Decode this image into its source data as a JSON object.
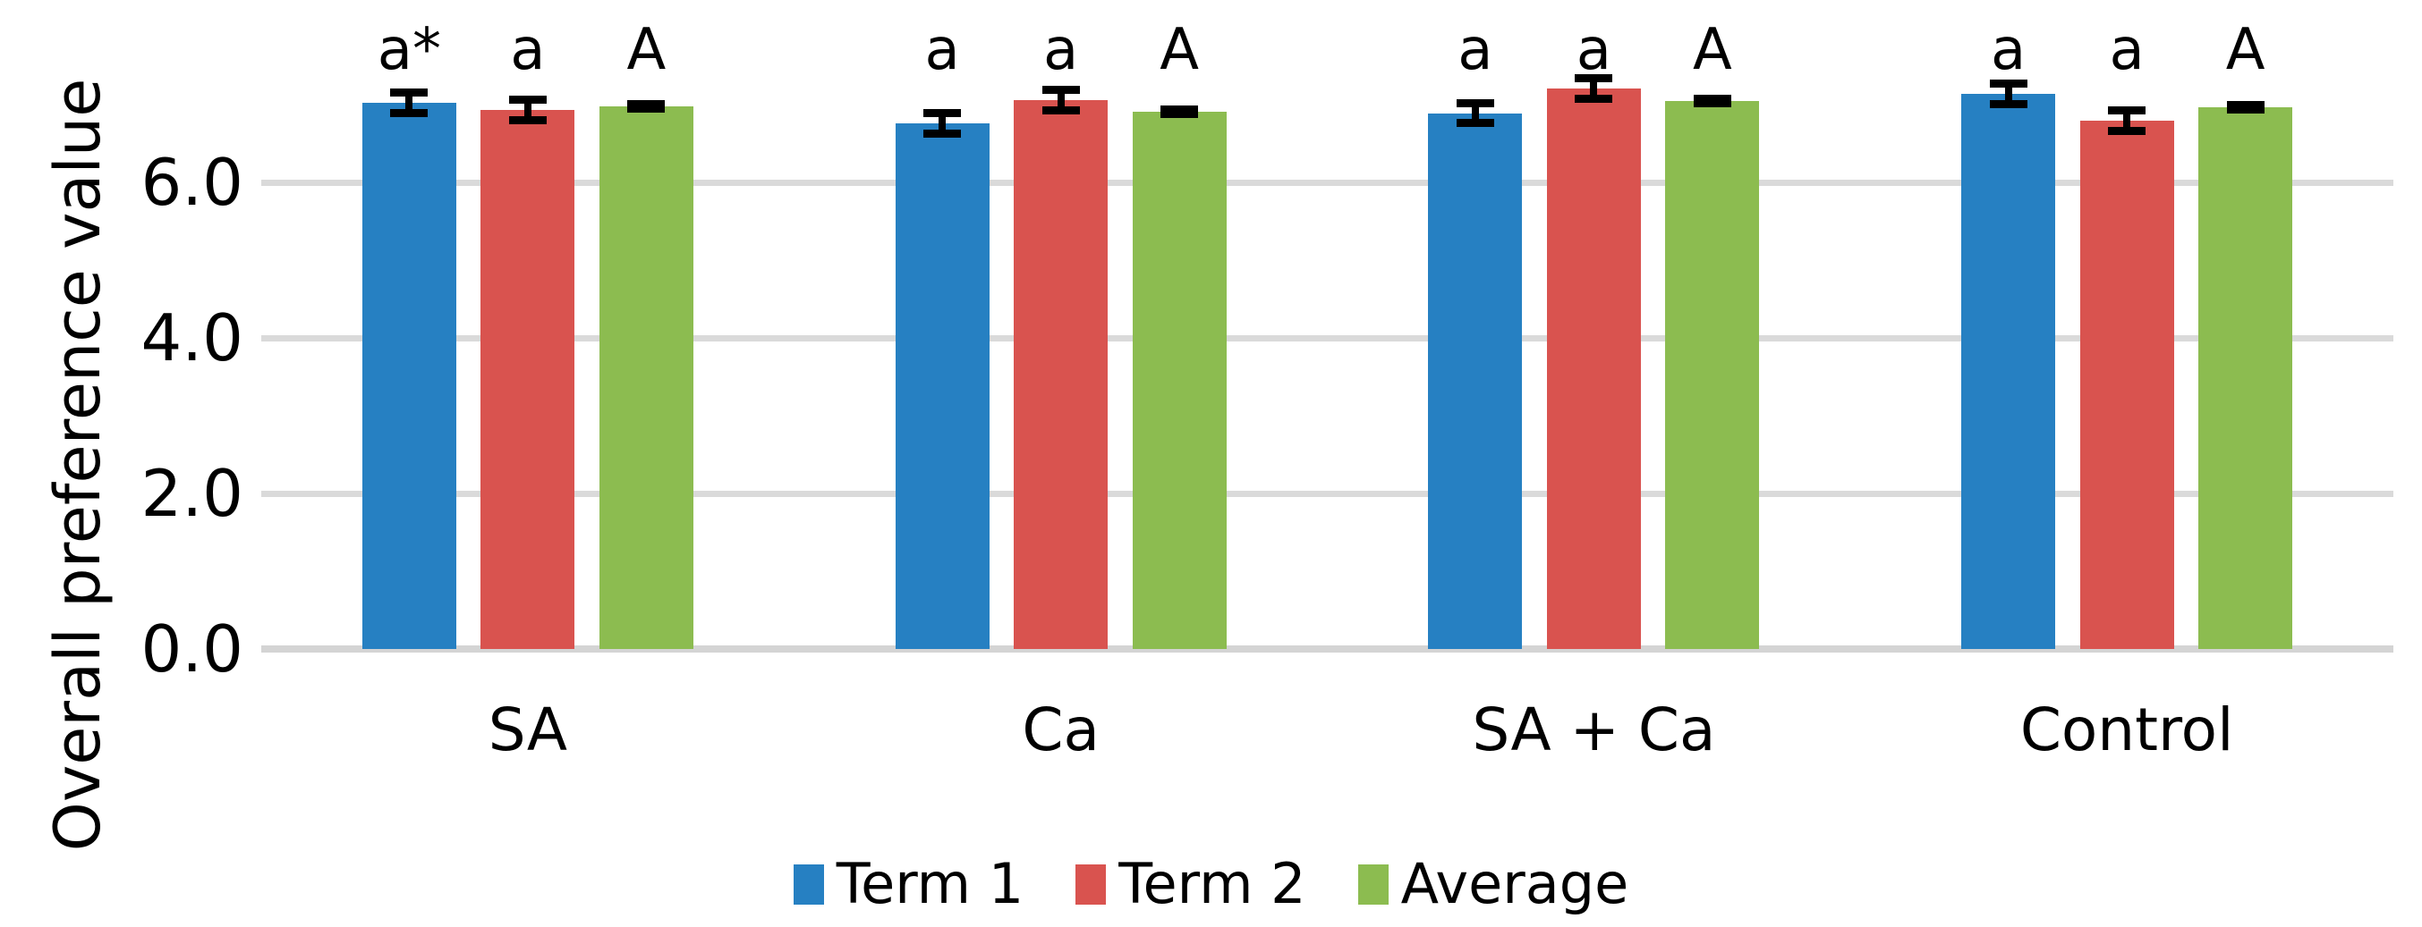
{
  "chart_data": {
    "type": "bar",
    "title": "",
    "ylabel": "Overall preference value",
    "xlabel": "",
    "categories": [
      "SA",
      "Ca",
      "SA + Ca",
      "Control"
    ],
    "series": [
      {
        "name": "Term 1",
        "color": "#2680C2",
        "values": [
          7.02,
          6.76,
          6.89,
          7.14
        ],
        "errors": [
          0.13,
          0.13,
          0.13,
          0.13
        ],
        "point_labels": [
          "a*",
          "a",
          "a",
          "a"
        ]
      },
      {
        "name": "Term 2",
        "color": "#D9534F",
        "values": [
          6.93,
          7.06,
          7.21,
          6.79
        ],
        "errors": [
          0.13,
          0.13,
          0.13,
          0.13
        ],
        "point_labels": [
          "a",
          "a",
          "a",
          "a"
        ]
      },
      {
        "name": "Average",
        "color": "#8CBC50",
        "values": [
          6.98,
          6.91,
          7.05,
          6.97
        ],
        "errors": [
          0.03,
          0.03,
          0.03,
          0.03
        ],
        "point_labels": [
          "A",
          "A",
          "A",
          "A"
        ]
      }
    ],
    "y_ticks": [
      {
        "value": 0,
        "label": "0.0"
      },
      {
        "value": 2,
        "label": "2.0"
      },
      {
        "value": 4,
        "label": "4.0"
      },
      {
        "value": 6,
        "label": "6.0"
      }
    ],
    "ylim": [
      0,
      8
    ],
    "grid": true,
    "error_bar_color": "#000000",
    "gridline_color": "#DADADA",
    "legend_position": "bottom"
  }
}
